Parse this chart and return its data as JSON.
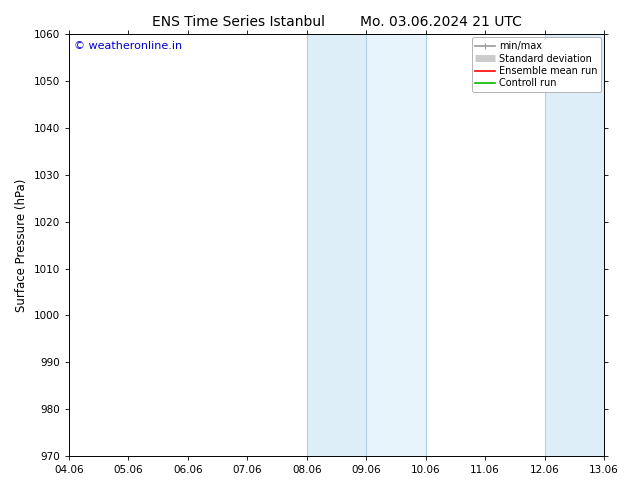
{
  "title_left": "ENS Time Series Istanbul",
  "title_right": "Mo. 03.06.2024 21 UTC",
  "ylabel": "Surface Pressure (hPa)",
  "ylim": [
    970,
    1060
  ],
  "yticks": [
    970,
    980,
    990,
    1000,
    1010,
    1020,
    1030,
    1040,
    1050,
    1060
  ],
  "xtick_labels": [
    "04.06",
    "05.06",
    "06.06",
    "07.06",
    "08.06",
    "09.06",
    "10.06",
    "11.06",
    "12.06",
    "13.06"
  ],
  "xtick_positions": [
    0,
    1,
    2,
    3,
    4,
    5,
    6,
    7,
    8,
    9
  ],
  "xlim": [
    0,
    9
  ],
  "shaded_bands": [
    {
      "x_start": 4.0,
      "x_end": 5.0,
      "color": "#ddeef8"
    },
    {
      "x_start": 5.0,
      "x_end": 6.0,
      "color": "#e8f4fb"
    },
    {
      "x_start": 8.0,
      "x_end": 9.0,
      "color": "#ddeef8"
    }
  ],
  "band_edge_lines": [
    4.0,
    5.0,
    6.0,
    8.0,
    9.0
  ],
  "band_edge_color": "#b0cfe0",
  "band_edge_lw": 0.8,
  "shade_color": "#daeaf5",
  "copyright_text": "© weatheronline.in",
  "copyright_color": "#0000cc",
  "background_color": "#ffffff",
  "plot_bg_color": "#ffffff",
  "legend_items": [
    {
      "label": "min/max",
      "color": "#999999",
      "lw": 1.2
    },
    {
      "label": "Standard deviation",
      "color": "#cccccc",
      "lw": 5
    },
    {
      "label": "Ensemble mean run",
      "color": "#ff0000",
      "lw": 1.2
    },
    {
      "label": "Controll run",
      "color": "#00bb00",
      "lw": 1.2
    }
  ],
  "title_fontsize": 10,
  "tick_fontsize": 7.5,
  "ylabel_fontsize": 8.5,
  "copyright_fontsize": 8,
  "legend_fontsize": 7,
  "figsize": [
    6.34,
    4.9
  ],
  "dpi": 100
}
